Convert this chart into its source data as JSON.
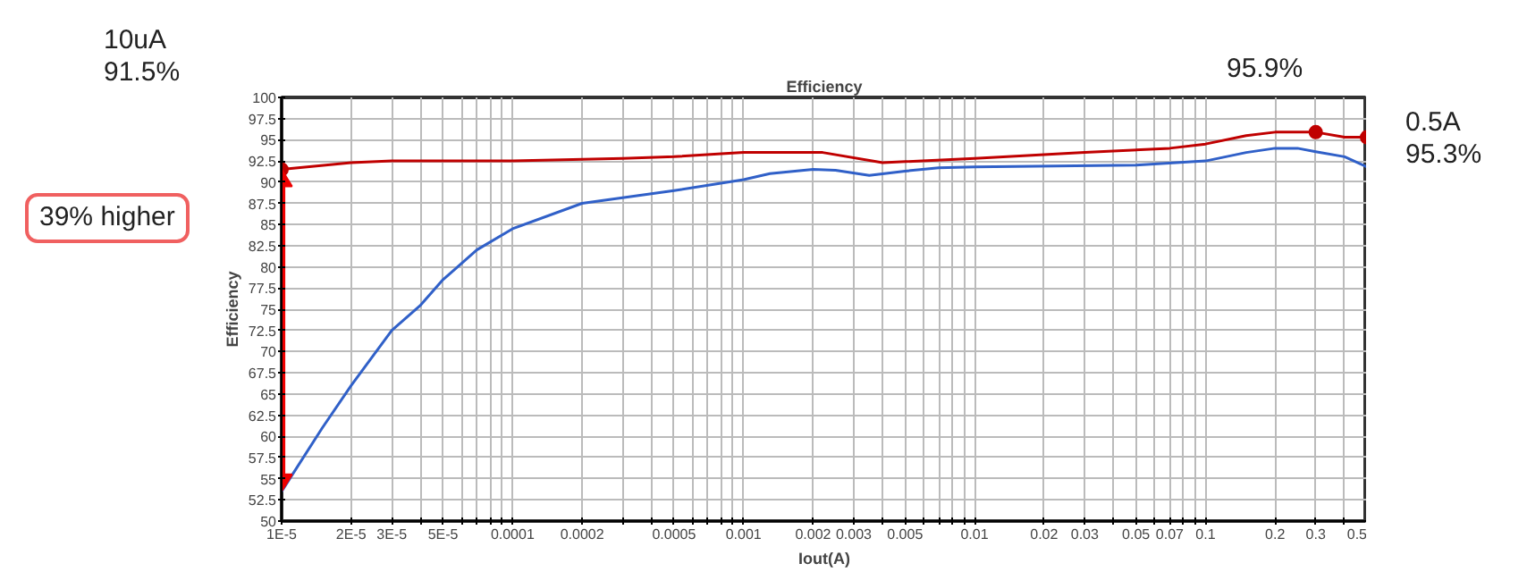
{
  "chart_data": {
    "type": "line",
    "title": "Efficiency",
    "xlabel": "Iout(A)",
    "ylabel": "Efficiency",
    "log": "x",
    "grid": true,
    "marker": "none",
    "line_style": "solid",
    "xlim": [
      1e-05,
      0.5
    ],
    "ylim": [
      50,
      100
    ],
    "yticks": [
      50,
      52.5,
      55,
      57.5,
      60,
      62.5,
      65,
      67.5,
      70,
      72.5,
      75,
      77.5,
      80,
      82.5,
      85,
      87.5,
      90,
      92.5,
      95,
      97.5,
      100
    ],
    "xticks": [
      {
        "value": 1e-05,
        "label": "1E-5"
      },
      {
        "value": 2e-05,
        "label": "2E-5"
      },
      {
        "value": 3e-05,
        "label": "3E-5"
      },
      {
        "value": 4e-05,
        "label": null
      },
      {
        "value": 5e-05,
        "label": "5E-5"
      },
      {
        "value": 6e-05,
        "label": null
      },
      {
        "value": 7e-05,
        "label": null
      },
      {
        "value": 8e-05,
        "label": null
      },
      {
        "value": 9e-05,
        "label": null
      },
      {
        "value": 0.0001,
        "label": "0.0001"
      },
      {
        "value": 0.0002,
        "label": "0.0002"
      },
      {
        "value": 0.0003,
        "label": null
      },
      {
        "value": 0.0004,
        "label": null
      },
      {
        "value": 0.0005,
        "label": "0.0005"
      },
      {
        "value": 0.0006,
        "label": null
      },
      {
        "value": 0.0007,
        "label": null
      },
      {
        "value": 0.0008,
        "label": null
      },
      {
        "value": 0.0009,
        "label": null
      },
      {
        "value": 0.001,
        "label": "0.001"
      },
      {
        "value": 0.002,
        "label": "0.002"
      },
      {
        "value": 0.003,
        "label": "0.003"
      },
      {
        "value": 0.004,
        "label": null
      },
      {
        "value": 0.005,
        "label": "0.005"
      },
      {
        "value": 0.006,
        "label": null
      },
      {
        "value": 0.007,
        "label": null
      },
      {
        "value": 0.008,
        "label": null
      },
      {
        "value": 0.009,
        "label": null
      },
      {
        "value": 0.01,
        "label": "0.01"
      },
      {
        "value": 0.02,
        "label": "0.02"
      },
      {
        "value": 0.03,
        "label": "0.03"
      },
      {
        "value": 0.04,
        "label": null
      },
      {
        "value": 0.05,
        "label": "0.05"
      },
      {
        "value": 0.06,
        "label": null
      },
      {
        "value": 0.07,
        "label": "0.07"
      },
      {
        "value": 0.08,
        "label": null
      },
      {
        "value": 0.09,
        "label": null
      },
      {
        "value": 0.1,
        "label": "0.1"
      },
      {
        "value": 0.2,
        "label": "0.2"
      },
      {
        "value": 0.3,
        "label": "0.3"
      },
      {
        "value": 0.4,
        "label": null
      },
      {
        "value": 0.5,
        "label": "0.5"
      }
    ],
    "series": [
      {
        "color": "#c00000",
        "x": [
          1e-05,
          2e-05,
          3e-05,
          0.0001,
          0.0003,
          0.0005,
          0.001,
          0.0022,
          0.004,
          0.01,
          0.03,
          0.07,
          0.1,
          0.15,
          0.2,
          0.3,
          0.4,
          0.5
        ],
        "values": [
          91.5,
          92.3,
          92.5,
          92.5,
          92.8,
          93,
          93.5,
          93.5,
          92.3,
          92.8,
          93.5,
          94,
          94.5,
          95.5,
          95.9,
          95.9,
          95.3,
          95.3
        ]
      },
      {
        "color": "#3060c8",
        "x": [
          1e-05,
          1.5e-05,
          2e-05,
          3e-05,
          4e-05,
          5e-05,
          7e-05,
          0.0001,
          0.0002,
          0.0005,
          0.001,
          0.0013,
          0.002,
          0.0025,
          0.0035,
          0.005,
          0.007,
          0.01,
          0.05,
          0.1,
          0.15,
          0.2,
          0.25,
          0.3,
          0.4,
          0.5
        ],
        "values": [
          53.5,
          61,
          66,
          72.5,
          75.5,
          78.5,
          82,
          84.5,
          87.5,
          89,
          90.3,
          91,
          91.5,
          91.4,
          90.8,
          91.3,
          91.7,
          91.8,
          92,
          92.5,
          93.5,
          94,
          94,
          93.6,
          93,
          91.8
        ]
      },
      {
        "type": "scatter",
        "marker": "circle",
        "color": "#c00000",
        "x": [
          1e-05,
          0.3,
          0.5
        ],
        "values": [
          91.5,
          95.9,
          95.3
        ]
      }
    ],
    "annotations": [
      "10uA\n91.5%",
      "95.9%",
      {
        "text": "0.5A\n95.3%",
        "x": 0.5,
        "y": 95.3
      },
      "39% higher"
    ]
  }
}
